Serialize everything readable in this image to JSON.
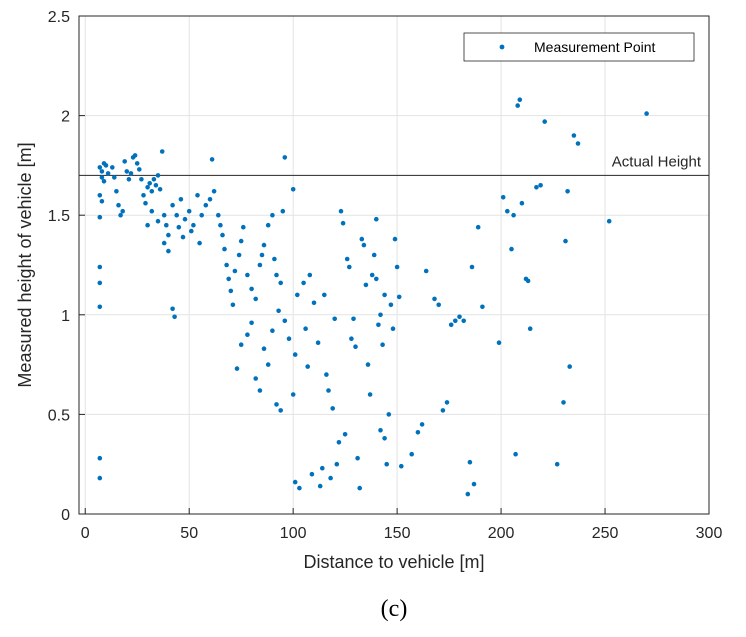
{
  "caption": "(c)",
  "chart_data": {
    "type": "scatter",
    "xlabel": "Distance to vehicle [m]",
    "ylabel": "Measured height of vehicle [m]",
    "xlim": [
      -3,
      300
    ],
    "ylim": [
      0,
      2.5
    ],
    "xticks": [
      0,
      50,
      100,
      150,
      200,
      250,
      300
    ],
    "yticks": [
      0,
      0.5,
      1,
      1.5,
      2,
      2.5
    ],
    "xtick_labels": [
      "0",
      "50",
      "100",
      "150",
      "200",
      "250",
      "300"
    ],
    "ytick_labels": [
      "0",
      "0.5",
      "1",
      "1.5",
      "2",
      "2.5"
    ],
    "grid": true,
    "legend_position": "top-right",
    "series": [
      {
        "name": "Measurement Point",
        "color": "#0072BD",
        "points": [
          [
            7,
            1.74
          ],
          [
            8,
            1.72
          ],
          [
            8,
            1.69
          ],
          [
            9,
            1.76
          ],
          [
            9,
            1.67
          ],
          [
            10,
            1.75
          ],
          [
            11,
            1.71
          ],
          [
            7,
            1.6
          ],
          [
            8,
            1.57
          ],
          [
            7,
            1.49
          ],
          [
            7,
            1.24
          ],
          [
            7,
            1.16
          ],
          [
            7,
            1.04
          ],
          [
            7,
            0.28
          ],
          [
            7,
            0.18
          ],
          [
            13,
            1.74
          ],
          [
            14,
            1.69
          ],
          [
            15,
            1.62
          ],
          [
            16,
            1.55
          ],
          [
            17,
            1.5
          ],
          [
            18,
            1.52
          ],
          [
            19,
            1.77
          ],
          [
            20,
            1.72
          ],
          [
            21,
            1.68
          ],
          [
            22,
            1.71
          ],
          [
            23,
            1.79
          ],
          [
            24,
            1.8
          ],
          [
            25,
            1.76
          ],
          [
            26,
            1.73
          ],
          [
            27,
            1.68
          ],
          [
            28,
            1.6
          ],
          [
            29,
            1.56
          ],
          [
            30,
            1.64
          ],
          [
            31,
            1.66
          ],
          [
            32,
            1.62
          ],
          [
            33,
            1.68
          ],
          [
            34,
            1.65
          ],
          [
            35,
            1.7
          ],
          [
            36,
            1.63
          ],
          [
            37,
            1.82
          ],
          [
            38,
            1.5
          ],
          [
            39,
            1.45
          ],
          [
            40,
            1.4
          ],
          [
            42,
            1.55
          ],
          [
            44,
            1.5
          ],
          [
            46,
            1.58
          ],
          [
            48,
            1.48
          ],
          [
            50,
            1.52
          ],
          [
            52,
            1.45
          ],
          [
            54,
            1.6
          ],
          [
            56,
            1.5
          ],
          [
            58,
            1.55
          ],
          [
            60,
            1.58
          ],
          [
            62,
            1.62
          ],
          [
            61,
            1.78
          ],
          [
            30,
            1.45
          ],
          [
            32,
            1.52
          ],
          [
            35,
            1.47
          ],
          [
            38,
            1.36
          ],
          [
            40,
            1.32
          ],
          [
            45,
            1.44
          ],
          [
            47,
            1.39
          ],
          [
            51,
            1.42
          ],
          [
            55,
            1.36
          ],
          [
            42,
            1.03
          ],
          [
            43,
            0.99
          ],
          [
            64,
            1.5
          ],
          [
            65,
            1.45
          ],
          [
            66,
            1.4
          ],
          [
            67,
            1.33
          ],
          [
            68,
            1.25
          ],
          [
            69,
            1.18
          ],
          [
            70,
            1.12
          ],
          [
            71,
            1.05
          ],
          [
            72,
            1.22
          ],
          [
            74,
            1.3
          ],
          [
            75,
            1.37
          ],
          [
            76,
            1.44
          ],
          [
            78,
            1.2
          ],
          [
            80,
            1.13
          ],
          [
            82,
            1.08
          ],
          [
            84,
            1.25
          ],
          [
            85,
            1.3
          ],
          [
            86,
            1.35
          ],
          [
            88,
            1.45
          ],
          [
            90,
            1.5
          ],
          [
            91,
            1.28
          ],
          [
            92,
            1.2
          ],
          [
            93,
            1.02
          ],
          [
            94,
            1.16
          ],
          [
            95,
            1.52
          ],
          [
            96,
            1.79
          ],
          [
            73,
            0.73
          ],
          [
            75,
            0.85
          ],
          [
            78,
            0.9
          ],
          [
            80,
            0.96
          ],
          [
            82,
            0.68
          ],
          [
            84,
            0.62
          ],
          [
            86,
            0.83
          ],
          [
            88,
            0.75
          ],
          [
            90,
            0.92
          ],
          [
            92,
            0.55
          ],
          [
            94,
            0.52
          ],
          [
            96,
            0.97
          ],
          [
            98,
            0.88
          ],
          [
            100,
            0.6
          ],
          [
            101,
            0.8
          ],
          [
            102,
            1.1
          ],
          [
            100,
            1.63
          ],
          [
            101,
            0.16
          ],
          [
            103,
            0.13
          ],
          [
            105,
            1.16
          ],
          [
            106,
            0.93
          ],
          [
            107,
            0.74
          ],
          [
            108,
            1.2
          ],
          [
            109,
            0.2
          ],
          [
            110,
            1.06
          ],
          [
            112,
            0.86
          ],
          [
            113,
            0.14
          ],
          [
            114,
            0.23
          ],
          [
            115,
            1.1
          ],
          [
            116,
            0.7
          ],
          [
            117,
            0.62
          ],
          [
            118,
            0.18
          ],
          [
            119,
            0.53
          ],
          [
            120,
            0.98
          ],
          [
            121,
            0.25
          ],
          [
            122,
            0.36
          ],
          [
            123,
            1.52
          ],
          [
            124,
            1.46
          ],
          [
            125,
            0.4
          ],
          [
            126,
            1.28
          ],
          [
            127,
            1.24
          ],
          [
            128,
            0.88
          ],
          [
            129,
            0.98
          ],
          [
            130,
            0.84
          ],
          [
            131,
            0.28
          ],
          [
            132,
            0.13
          ],
          [
            133,
            1.38
          ],
          [
            134,
            1.35
          ],
          [
            135,
            1.15
          ],
          [
            136,
            0.75
          ],
          [
            137,
            0.6
          ],
          [
            138,
            1.2
          ],
          [
            139,
            1.3
          ],
          [
            140,
            1.48
          ],
          [
            141,
            0.95
          ],
          [
            142,
            0.42
          ],
          [
            143,
            0.85
          ],
          [
            144,
            0.38
          ],
          [
            145,
            0.25
          ],
          [
            146,
            0.5
          ],
          [
            147,
            1.05
          ],
          [
            148,
            0.93
          ],
          [
            149,
            1.38
          ],
          [
            150,
            1.24
          ],
          [
            151,
            1.09
          ],
          [
            152,
            0.24
          ],
          [
            140,
            1.18
          ],
          [
            142,
            1.0
          ],
          [
            144,
            1.1
          ],
          [
            157,
            0.3
          ],
          [
            160,
            0.41
          ],
          [
            162,
            0.45
          ],
          [
            164,
            1.22
          ],
          [
            168,
            1.08
          ],
          [
            170,
            1.05
          ],
          [
            172,
            0.52
          ],
          [
            174,
            0.56
          ],
          [
            176,
            0.95
          ],
          [
            178,
            0.97
          ],
          [
            180,
            0.99
          ],
          [
            182,
            0.97
          ],
          [
            184,
            0.1
          ],
          [
            185,
            0.26
          ],
          [
            186,
            1.24
          ],
          [
            187,
            0.15
          ],
          [
            189,
            1.44
          ],
          [
            191,
            1.04
          ],
          [
            199,
            0.86
          ],
          [
            201,
            1.59
          ],
          [
            203,
            1.52
          ],
          [
            205,
            1.33
          ],
          [
            206,
            1.5
          ],
          [
            207,
            0.3
          ],
          [
            208,
            2.05
          ],
          [
            209,
            2.08
          ],
          [
            210,
            1.56
          ],
          [
            212,
            1.18
          ],
          [
            213,
            1.17
          ],
          [
            214,
            0.93
          ],
          [
            217,
            1.64
          ],
          [
            219,
            1.65
          ],
          [
            221,
            1.97
          ],
          [
            227,
            0.25
          ],
          [
            230,
            0.56
          ],
          [
            231,
            1.37
          ],
          [
            232,
            1.62
          ],
          [
            233,
            0.74
          ],
          [
            235,
            1.9
          ],
          [
            237,
            1.86
          ],
          [
            252,
            1.47
          ],
          [
            270,
            2.01
          ]
        ]
      }
    ],
    "reference_lines": [
      {
        "y": 1.7,
        "label": "Actual Height",
        "color": "#262626"
      }
    ]
  }
}
